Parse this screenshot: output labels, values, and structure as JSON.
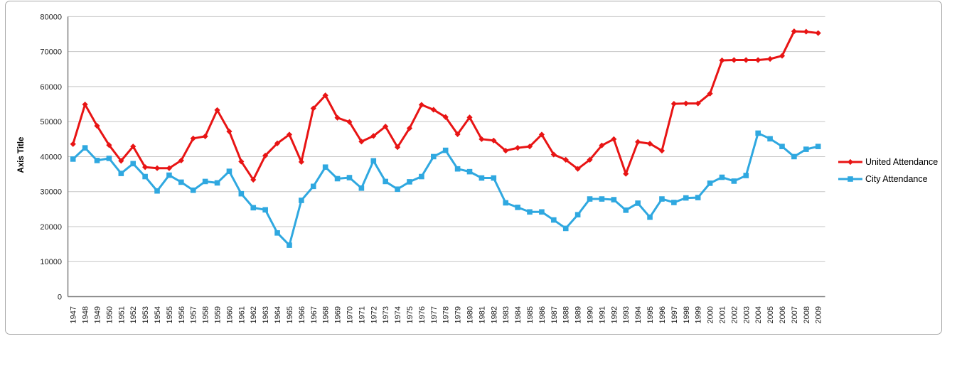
{
  "chart_data": {
    "type": "line",
    "title": "",
    "xlabel": "",
    "ylabel": "Axis Title",
    "x": [
      1947,
      1948,
      1949,
      1950,
      1951,
      1952,
      1953,
      1954,
      1955,
      1956,
      1957,
      1958,
      1959,
      1960,
      1961,
      1962,
      1963,
      1964,
      1965,
      1966,
      1967,
      1968,
      1969,
      1970,
      1971,
      1972,
      1973,
      1974,
      1975,
      1976,
      1977,
      1978,
      1979,
      1980,
      1981,
      1982,
      1983,
      1984,
      1985,
      1986,
      1987,
      1988,
      1989,
      1990,
      1991,
      1992,
      1993,
      1994,
      1995,
      1996,
      1997,
      1998,
      1999,
      2000,
      2001,
      2002,
      2003,
      2004,
      2005,
      2006,
      2007,
      2008,
      2009
    ],
    "ylim": [
      0,
      80000
    ],
    "y_ticks": [
      0,
      10000,
      20000,
      30000,
      40000,
      50000,
      60000,
      70000,
      80000
    ],
    "grid": true,
    "legend_position": "right",
    "series": [
      {
        "name": "United Attendance",
        "color": "#e81414",
        "marker": "diamond",
        "values": [
          43600,
          54900,
          48800,
          43300,
          38800,
          42900,
          37000,
          36700,
          36700,
          38900,
          45200,
          45800,
          53300,
          47200,
          38600,
          33400,
          40300,
          43800,
          46300,
          38500,
          53800,
          57500,
          51100,
          49900,
          44300,
          45900,
          48600,
          42700,
          48100,
          54800,
          53400,
          51300,
          46400,
          51200,
          45000,
          44600,
          41700,
          42500,
          42900,
          46300,
          40600,
          39100,
          36500,
          39100,
          43200,
          45000,
          35100,
          44200,
          43700,
          41700,
          55100,
          55200,
          55200,
          58000,
          67500,
          67600,
          67600,
          67600,
          67900,
          68800,
          75800,
          75700,
          75300
        ]
      },
      {
        "name": "City Attendance",
        "color": "#2fa8e0",
        "marker": "square",
        "values": [
          39300,
          42500,
          38900,
          39500,
          35200,
          38000,
          34300,
          30200,
          34700,
          32700,
          30400,
          32900,
          32500,
          35800,
          29400,
          25400,
          24800,
          18200,
          14700,
          27500,
          31500,
          37000,
          33700,
          34000,
          31000,
          38800,
          32900,
          30700,
          32800,
          34300,
          40000,
          41800,
          36500,
          35700,
          33900,
          33900,
          26800,
          25500,
          24200,
          24200,
          21900,
          19500,
          23400,
          27900,
          27900,
          27700,
          24700,
          26700,
          22700,
          27900,
          26900,
          28200,
          28300,
          32400,
          34100,
          33000,
          34600,
          46700,
          45100,
          42900,
          40000,
          42100,
          42900
        ]
      }
    ]
  },
  "colors": {
    "gridline": "#c6c6c6",
    "axis": "#808080",
    "frame_border": "#a7a7a7",
    "tick_text": "#1f1f1f",
    "axis_title_text": "#000000"
  }
}
